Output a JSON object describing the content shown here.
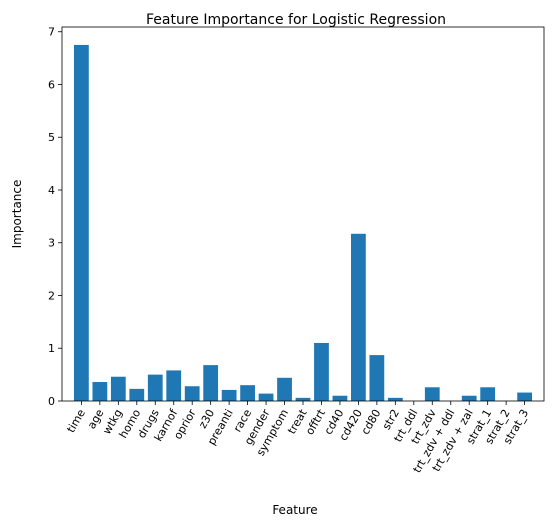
{
  "chart_data": {
    "type": "bar",
    "title": "Feature Importance for Logistic Regression",
    "xlabel": "Feature",
    "ylabel": "Importance",
    "ylim": [
      0,
      7.09
    ],
    "yticks": [
      0,
      1,
      2,
      3,
      4,
      5,
      6,
      7
    ],
    "grid": false,
    "categories": [
      "time",
      "age",
      "wtkg",
      "homo",
      "drugs",
      "karnof",
      "oprior",
      "z30",
      "preanti",
      "race",
      "gender",
      "symptom",
      "treat",
      "offtrt",
      "cd40",
      "cd420",
      "cd80",
      "str2",
      "trt_ddl",
      "trt_zdv",
      "trt_zdv + ddl",
      "trt_zdv + zal",
      "strat_1",
      "strat_2",
      "strat_3"
    ],
    "values": [
      6.75,
      0.36,
      0.46,
      0.23,
      0.5,
      0.58,
      0.28,
      0.68,
      0.21,
      0.3,
      0.14,
      0.44,
      0.06,
      1.1,
      0.1,
      3.17,
      0.87,
      0.06,
      0.0,
      0.26,
      0.0,
      0.1,
      0.26,
      0.0,
      0.16
    ],
    "bar_color": "#1f77b4"
  }
}
